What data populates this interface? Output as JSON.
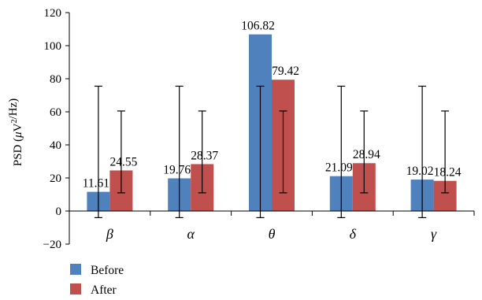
{
  "chart_data": {
    "type": "bar",
    "categories": [
      "β",
      "α",
      "θ",
      "δ",
      "γ"
    ],
    "series": [
      {
        "name": "Before",
        "color": "#4f81bd",
        "values": [
          11.61,
          19.76,
          106.82,
          21.09,
          19.02
        ],
        "error_low": [
          -4,
          -4,
          -4,
          -4,
          -4
        ],
        "error_high": [
          75.5,
          75.5,
          75.5,
          75.5,
          75.5
        ]
      },
      {
        "name": "After",
        "color": "#c0504d",
        "values": [
          24.55,
          28.37,
          79.42,
          28.94,
          18.24
        ],
        "error_low": [
          11,
          11,
          11,
          11,
          11
        ],
        "error_high": [
          60.5,
          60.5,
          60.5,
          60.5,
          60.5
        ]
      }
    ],
    "data_labels": [
      [
        "11.61",
        "19.76",
        "106.82",
        "21.09",
        "19.02"
      ],
      [
        "24.55",
        "28.37",
        "79.42",
        "28.94",
        "18.24"
      ]
    ],
    "ylabel": {
      "prefix": "PSD (",
      "mu": "μ",
      "v": "V",
      "sup": "2",
      "suffix": "/Hz)"
    },
    "ylim": [
      -20,
      120
    ],
    "yticks": [
      -20,
      0,
      20,
      40,
      60,
      80,
      100,
      120
    ],
    "ytick_labels": [
      "−20",
      "0",
      "20",
      "40",
      "60",
      "80",
      "100",
      "120"
    ],
    "grid": false,
    "legend_position": "bottom-left"
  }
}
